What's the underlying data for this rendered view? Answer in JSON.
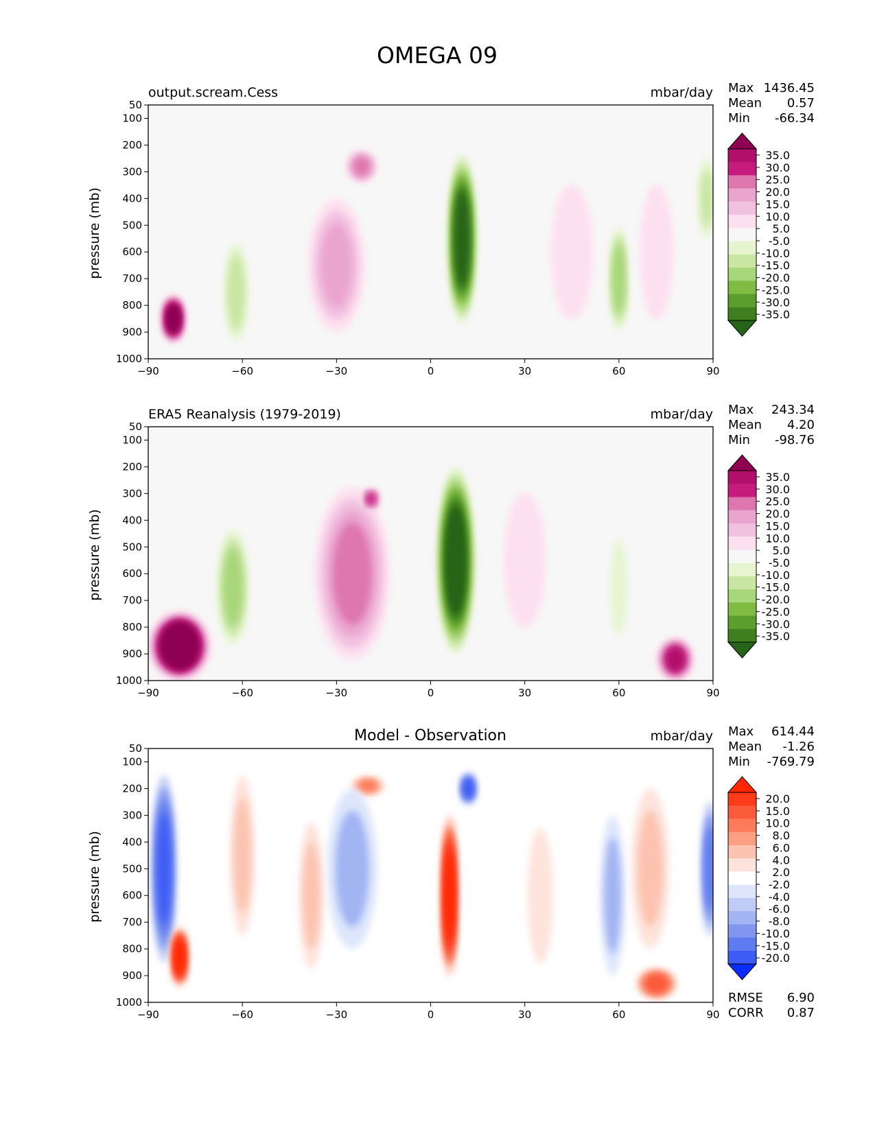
{
  "figure": {
    "title": "OMEGA 09"
  },
  "chart_data": [
    {
      "type": "heatmap",
      "title": "output.scream.Cess",
      "units": "mbar/day",
      "xlabel": "",
      "ylabel": "pressure (mb)",
      "xlim": [
        -90,
        90
      ],
      "ylim": [
        1000,
        50
      ],
      "xticks": [
        "−90",
        "−60",
        "−30",
        "0",
        "30",
        "60",
        "90"
      ],
      "yticks": [
        "50",
        "100",
        "200",
        "300",
        "400",
        "500",
        "600",
        "700",
        "800",
        "900",
        "1000"
      ],
      "stats": {
        "max_label": "Max",
        "max": "1436.45",
        "mean_label": "Mean",
        "mean": "0.57",
        "min_label": "Min",
        "min": "-66.34"
      },
      "colorbar": {
        "levels": [
          "35.0",
          "30.0",
          "25.0",
          "20.0",
          "15.0",
          "10.0",
          "5.0",
          "-5.0",
          "-10.0",
          "-15.0",
          "-20.0",
          "-25.0",
          "-30.0",
          "-35.0"
        ],
        "colors": [
          "#8e0152",
          "#b0106a",
          "#c51b7d",
          "#de77ae",
          "#eaa5cf",
          "#f1c1e0",
          "#fde0ef",
          "#f7f7f7",
          "#e6f5d0",
          "#c9e6a3",
          "#a8d67a",
          "#7fbc41",
          "#5c9e2e",
          "#3f7f1e",
          "#276419"
        ]
      },
      "features": [
        {
          "lat": 10,
          "p": 550,
          "lon_width": 5,
          "p_depth": 680,
          "value": -40
        },
        {
          "lat": -30,
          "p": 650,
          "lon_width": 9,
          "p_depth": 500,
          "value": 16
        },
        {
          "lat": -22,
          "p": 280,
          "lon_width": 5,
          "p_depth": 120,
          "value": 20
        },
        {
          "lat": 60,
          "p": 700,
          "lon_width": 4,
          "p_depth": 450,
          "value": -18
        },
        {
          "lat": -62,
          "p": 750,
          "lon_width": 5,
          "p_depth": 450,
          "value": -14
        },
        {
          "lat": -82,
          "p": 850,
          "lon_width": 4,
          "p_depth": 180,
          "value": 40
        },
        {
          "lat": 72,
          "p": 600,
          "lon_width": 8,
          "p_depth": 700,
          "value": 8
        },
        {
          "lat": 88,
          "p": 400,
          "lon_width": 3,
          "p_depth": 300,
          "value": -12
        },
        {
          "lat": 45,
          "p": 600,
          "lon_width": 10,
          "p_depth": 700,
          "value": 6
        }
      ]
    },
    {
      "type": "heatmap",
      "title": "ERA5 Reanalysis (1979-2019)",
      "units": "mbar/day",
      "xlabel": "",
      "ylabel": "pressure (mb)",
      "xlim": [
        -90,
        90
      ],
      "ylim": [
        1000,
        50
      ],
      "xticks": [
        "−90",
        "−60",
        "−30",
        "0",
        "30",
        "60",
        "90"
      ],
      "yticks": [
        "50",
        "100",
        "200",
        "300",
        "400",
        "500",
        "600",
        "700",
        "800",
        "900",
        "1000"
      ],
      "stats": {
        "max_label": "Max",
        "max": "243.34",
        "mean_label": "Mean",
        "mean": "4.20",
        "min_label": "Min",
        "min": "-98.76"
      },
      "colorbar": {
        "levels": [
          "35.0",
          "30.0",
          "25.0",
          "20.0",
          "15.0",
          "10.0",
          "5.0",
          "-5.0",
          "-10.0",
          "-15.0",
          "-20.0",
          "-25.0",
          "-30.0",
          "-35.0"
        ],
        "colors": [
          "#8e0152",
          "#b0106a",
          "#c51b7d",
          "#de77ae",
          "#eaa5cf",
          "#f1c1e0",
          "#fde0ef",
          "#f7f7f7",
          "#e6f5d0",
          "#c9e6a3",
          "#a8d67a",
          "#7fbc41",
          "#5c9e2e",
          "#3f7f1e",
          "#276419"
        ]
      },
      "features": [
        {
          "lat": 8,
          "p": 550,
          "lon_width": 6,
          "p_depth": 700,
          "value": -45
        },
        {
          "lat": -25,
          "p": 600,
          "lon_width": 12,
          "p_depth": 650,
          "value": 20
        },
        {
          "lat": -19,
          "p": 320,
          "lon_width": 3,
          "p_depth": 80,
          "value": 26
        },
        {
          "lat": -63,
          "p": 650,
          "lon_width": 6,
          "p_depth": 500,
          "value": -20
        },
        {
          "lat": -80,
          "p": 870,
          "lon_width": 10,
          "p_depth": 260,
          "value": 50
        },
        {
          "lat": 78,
          "p": 920,
          "lon_width": 6,
          "p_depth": 160,
          "value": 30
        },
        {
          "lat": 60,
          "p": 650,
          "lon_width": 4,
          "p_depth": 500,
          "value": -8
        },
        {
          "lat": 30,
          "p": 550,
          "lon_width": 10,
          "p_depth": 700,
          "value": 7
        }
      ]
    },
    {
      "type": "heatmap",
      "title": "Model - Observation",
      "units": "mbar/day",
      "xlabel": "",
      "ylabel": "pressure (mb)",
      "xlim": [
        -90,
        90
      ],
      "ylim": [
        1000,
        50
      ],
      "xticks": [
        "−90",
        "−60",
        "−30",
        "0",
        "30",
        "60",
        "90"
      ],
      "yticks": [
        "50",
        "100",
        "200",
        "300",
        "400",
        "500",
        "600",
        "700",
        "800",
        "900",
        "1000"
      ],
      "stats": {
        "max_label": "Max",
        "max": "614.44",
        "mean_label": "Mean",
        "mean": "-1.26",
        "min_label": "Min",
        "min": "-769.79"
      },
      "metrics": {
        "rmse_label": "RMSE",
        "rmse": "6.90",
        "corr_label": "CORR",
        "corr": "0.87"
      },
      "colorbar": {
        "levels": [
          "20.0",
          "15.0",
          "10.0",
          "8.0",
          "6.0",
          "4.0",
          "2.0",
          "-2.0",
          "-4.0",
          "-6.0",
          "-8.0",
          "-10.0",
          "-15.0",
          "-20.0"
        ],
        "colors": [
          "#ff2600",
          "#ff3b1a",
          "#fb5a3b",
          "#fc7b5a",
          "#fc9e82",
          "#fcc3b0",
          "#fde3db",
          "#ffffff",
          "#dde6fb",
          "#c0ccf6",
          "#a3b4f3",
          "#8197ef",
          "#5e7bf0",
          "#3c5cf5",
          "#0a2cff"
        ]
      },
      "features": [
        {
          "lat": 6,
          "p": 600,
          "lon_width": 3,
          "p_depth": 600,
          "value": 20
        },
        {
          "lat": 12,
          "p": 200,
          "lon_width": 3,
          "p_depth": 120,
          "value": -16
        },
        {
          "lat": -20,
          "p": 190,
          "lon_width": 5,
          "p_depth": 70,
          "value": 9
        },
        {
          "lat": -25,
          "p": 500,
          "lon_width": 8,
          "p_depth": 600,
          "value": -7
        },
        {
          "lat": -38,
          "p": 600,
          "lon_width": 4,
          "p_depth": 550,
          "value": 5
        },
        {
          "lat": -60,
          "p": 450,
          "lon_width": 4,
          "p_depth": 600,
          "value": 4
        },
        {
          "lat": -85,
          "p": 500,
          "lon_width": 4,
          "p_depth": 700,
          "value": -20
        },
        {
          "lat": -80,
          "p": 830,
          "lon_width": 3,
          "p_depth": 220,
          "value": 20
        },
        {
          "lat": 58,
          "p": 600,
          "lon_width": 4,
          "p_depth": 600,
          "value": -8
        },
        {
          "lat": 70,
          "p": 500,
          "lon_width": 6,
          "p_depth": 600,
          "value": 5
        },
        {
          "lat": 72,
          "p": 930,
          "lon_width": 6,
          "p_depth": 110,
          "value": 12
        },
        {
          "lat": 89,
          "p": 500,
          "lon_width": 3,
          "p_depth": 500,
          "value": -14
        },
        {
          "lat": 35,
          "p": 600,
          "lon_width": 6,
          "p_depth": 700,
          "value": 3
        }
      ]
    }
  ]
}
